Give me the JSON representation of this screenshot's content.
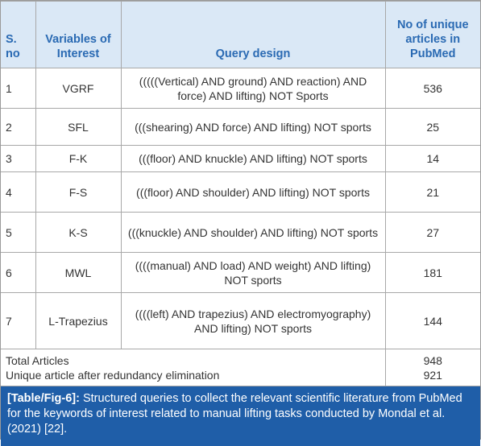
{
  "table": {
    "header": [
      "S. no",
      "Variables of Interest",
      "Query design",
      "No of unique articles in PubMed"
    ],
    "rows": [
      [
        1,
        "VGRF",
        "(((((Vertical) AND ground) AND reaction) AND force) AND lifting) NOT Sports",
        536
      ],
      [
        2,
        "SFL",
        "(((shearing) AND force) AND lifting) NOT sports",
        25
      ],
      [
        3,
        "F-K",
        "(((floor) AND knuckle) AND lifting) NOT sports",
        14
      ],
      [
        4,
        "F-S",
        "(((floor) AND shoulder) AND lifting) NOT sports",
        21
      ],
      [
        5,
        "K-S",
        "(((knuckle) AND shoulder) AND lifting) NOT sports",
        27
      ],
      [
        6,
        "MWL",
        "((((manual) AND load) AND weight) AND lifting) NOT sports",
        181
      ],
      [
        7,
        "L-Trapezius",
        "((((left) AND trapezius) AND electromyography) AND lifting) NOT sports",
        144
      ]
    ],
    "totals": [
      {
        "label": "Total Articles",
        "value": 948
      },
      {
        "label": "Unique article after redundancy elimination",
        "value": 921
      }
    ]
  },
  "caption": {
    "label": "[Table/Fig-6]:",
    "text": "Structured queries to collect the relevant scientific literature from PubMed for the keywords of interest related to manual lifting tasks conducted by Mondal et al. (2021) [22]."
  }
}
